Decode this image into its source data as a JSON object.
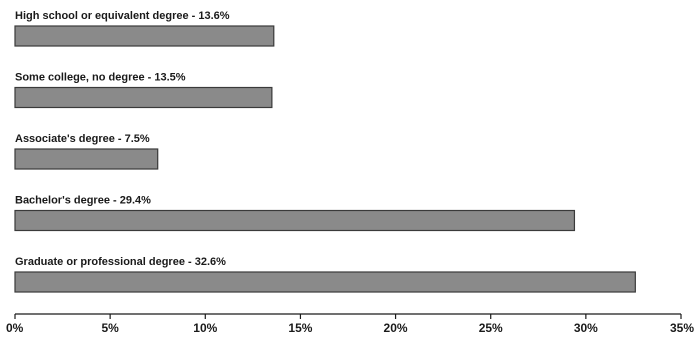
{
  "chart_data": {
    "type": "bar",
    "orientation": "horizontal",
    "categories": [
      "High school or equivalent degree",
      "Some college, no degree",
      "Associate's degree",
      "Bachelor's degree",
      "Graduate or professional degree"
    ],
    "values": [
      13.6,
      13.5,
      7.5,
      29.4,
      32.6
    ],
    "bar_labels": [
      "High school or equivalent degree - 13.6%",
      "Some college, no degree - 13.5%",
      "Associate's degree - 7.5%",
      "Bachelor's degree - 29.4%",
      "Graduate or professional degree - 32.6%"
    ],
    "x_ticks": [
      0,
      5,
      10,
      15,
      20,
      25,
      30,
      35
    ],
    "x_tick_labels": [
      "0%",
      "5%",
      "10%",
      "15%",
      "20%",
      "25%",
      "30%",
      "35%"
    ],
    "xlim": [
      0,
      35
    ],
    "title": "",
    "xlabel": "",
    "ylabel": "",
    "grid": false,
    "legend": "none",
    "colors": {
      "bar_fill": "#8a8a8a",
      "bar_stroke": "#3a3a3a",
      "axis": "#1a1a1a",
      "text": "#1a1a1a"
    }
  }
}
